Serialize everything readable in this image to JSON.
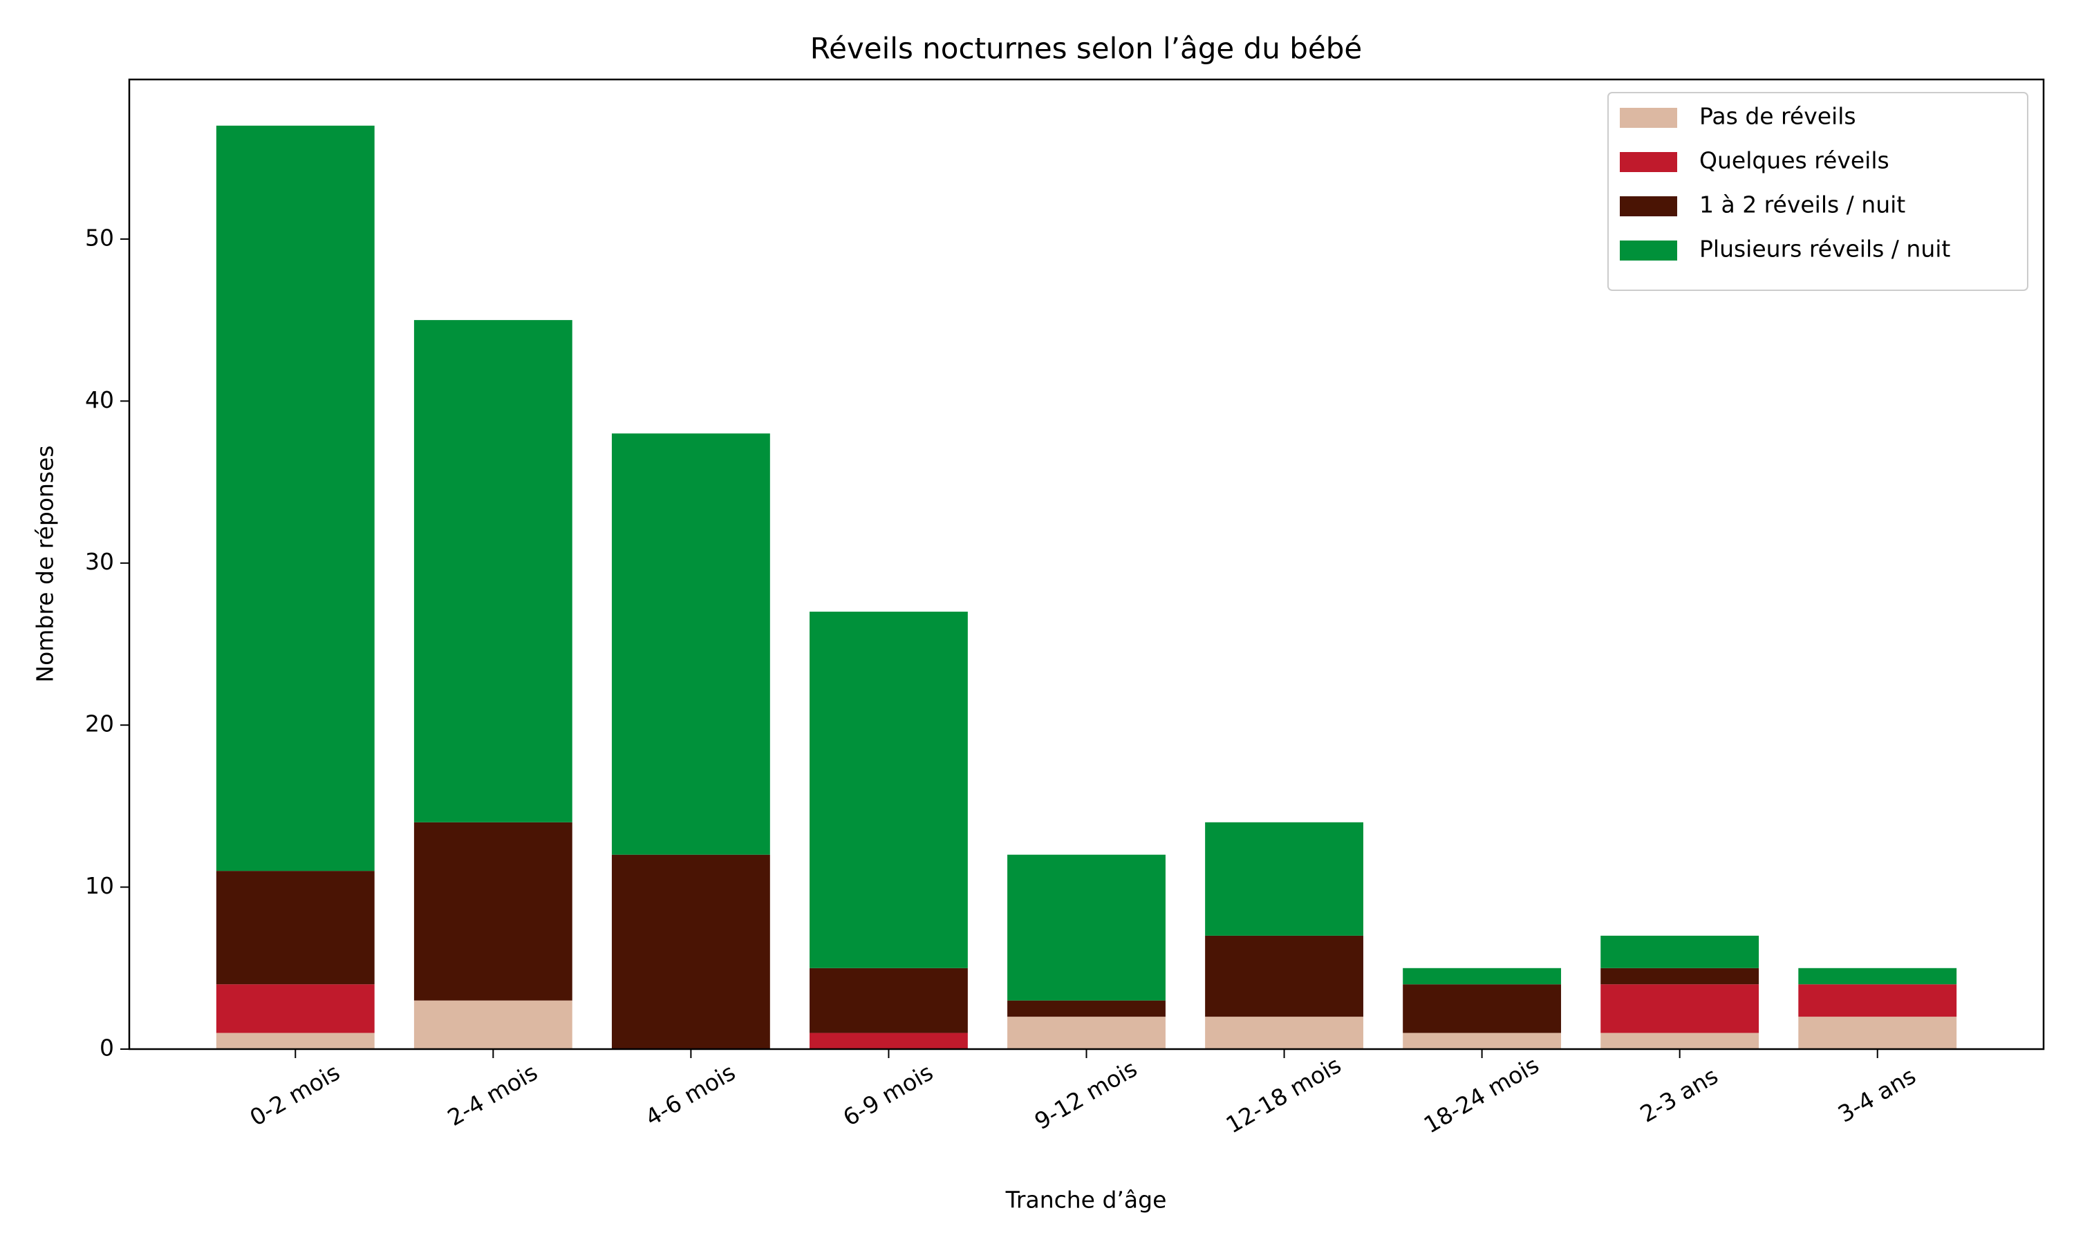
{
  "chart_data": {
    "type": "stacked-bar",
    "title": "Réveils nocturnes selon l’âge du bébé",
    "x_label": "Tranche d’âge",
    "y_label": "Nombre de réponses",
    "categories": [
      "0-2 mois",
      "2-4 mois",
      "4-6 mois",
      "6-9 mois",
      "9-12 mois",
      "12-18 mois",
      "18-24 mois",
      "2-3 ans",
      "3-4 ans"
    ],
    "series": [
      {
        "name": "Pas de réveils",
        "color": "#dcb8a2",
        "values": [
          1,
          3,
          0,
          0,
          2,
          2,
          1,
          1,
          2
        ]
      },
      {
        "name": "Quelques réveils",
        "color": "#c01a2c",
        "values": [
          3,
          0,
          0,
          1,
          0,
          0,
          0,
          3,
          2
        ]
      },
      {
        "name": "1 à 2 réveils / nuit",
        "color": "#4a1404",
        "values": [
          7,
          11,
          12,
          4,
          1,
          5,
          3,
          1,
          0
        ]
      },
      {
        "name": "Plusieurs réveils / nuit",
        "color": "#00913a",
        "values": [
          46,
          31,
          26,
          22,
          9,
          7,
          1,
          2,
          1
        ]
      }
    ],
    "ylim": [
      0,
      59.85
    ],
    "yticks": [
      0,
      10,
      20,
      30,
      40,
      50
    ],
    "legend": "upper right"
  }
}
